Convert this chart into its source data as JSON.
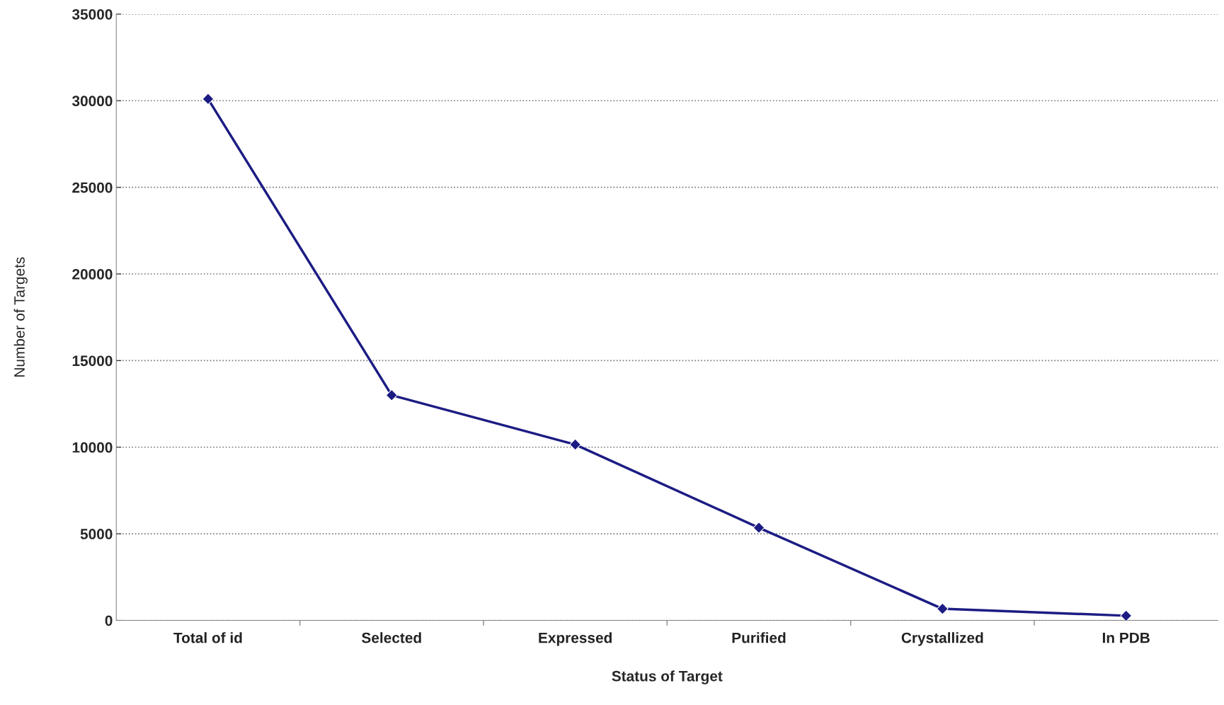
{
  "chart_data": {
    "type": "line",
    "xlabel": "Status of Target",
    "ylabel": "Number of Targets",
    "categories": [
      "Total of id",
      "Selected",
      "Expressed",
      "Purified",
      "Crystallized",
      "In PDB"
    ],
    "series": [
      {
        "color": "#1c1c84",
        "values": [
          30100,
          13000,
          10150,
          5350,
          670,
          270
        ]
      }
    ],
    "ylim": [
      0,
      35000
    ],
    "yticks": [
      0,
      5000,
      10000,
      15000,
      20000,
      25000,
      30000,
      35000
    ],
    "grid": "y",
    "marker": "diamond",
    "line_style": "solid",
    "legend": false
  }
}
